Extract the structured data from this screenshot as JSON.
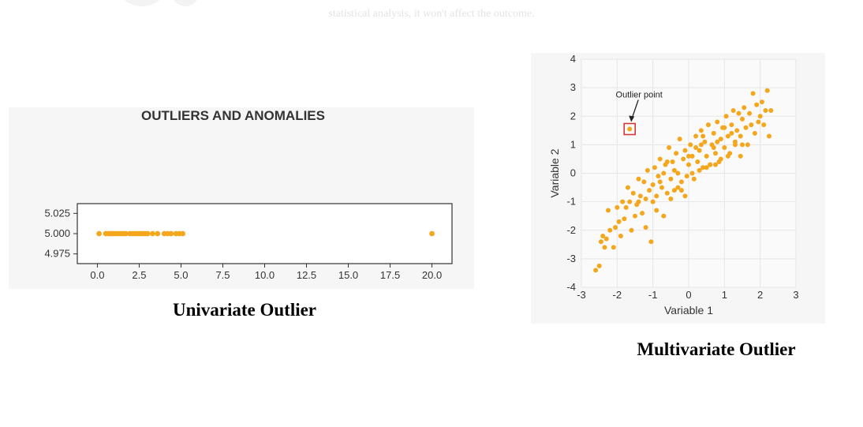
{
  "page": {
    "faded_text": "statistical analysis, it won't affect the outcome."
  },
  "captions": {
    "left": "Univariate Outlier",
    "right": "Multivariate Outlier"
  },
  "chart_data": [
    {
      "type": "scatter",
      "title": "OUTLIERS AND ANOMALIES",
      "xlabel": "",
      "ylabel": "",
      "xlim": [
        -1.2,
        21.2
      ],
      "ylim": [
        4.963,
        5.037
      ],
      "xticks": [
        0.0,
        2.5,
        5.0,
        7.5,
        10.0,
        12.5,
        15.0,
        17.5,
        20.0
      ],
      "yticks": [
        4.975,
        5.0,
        5.025
      ],
      "tick_format": {
        "x": 1,
        "y": 3
      },
      "grid": false,
      "marker_color": "#f4a71d",
      "x": [
        0.1,
        0.5,
        0.65,
        0.8,
        0.95,
        1.1,
        1.25,
        1.4,
        1.55,
        1.7,
        1.95,
        2.1,
        2.25,
        2.4,
        2.55,
        2.7,
        2.85,
        3.0,
        3.3,
        3.6,
        4.0,
        4.2,
        4.4,
        4.7,
        4.9,
        5.1,
        20.0
      ],
      "y": [
        5.0,
        5.0,
        5.0,
        5.0,
        5.0,
        5.0,
        5.0,
        5.0,
        5.0,
        5.0,
        5.0,
        5.0,
        5.0,
        5.0,
        5.0,
        5.0,
        5.0,
        5.0,
        5.0,
        5.0,
        5.0,
        5.0,
        5.0,
        5.0,
        5.0,
        5.0,
        5.0
      ]
    },
    {
      "type": "scatter",
      "title": "",
      "xlabel": "Variable 1",
      "ylabel": "Variable 2",
      "xlim": [
        -3,
        3
      ],
      "ylim": [
        -4,
        4
      ],
      "xticks": [
        -3,
        -2,
        -1,
        0,
        1,
        2,
        3
      ],
      "yticks": [
        -4,
        -3,
        -2,
        -1,
        0,
        1,
        2,
        3,
        4
      ],
      "tick_format": {
        "x": 0,
        "y": 0
      },
      "grid": true,
      "marker_color": "#f4a71d",
      "annotation": {
        "text": "Outlier point",
        "x": -1.65,
        "y": 1.55,
        "box_color": "#d03a3a"
      },
      "x": [
        -2.6,
        -2.5,
        -2.45,
        -2.4,
        -2.35,
        -2.3,
        -2.25,
        -2.2,
        -2.1,
        -2.05,
        -2.0,
        -1.95,
        -1.9,
        -1.85,
        -1.8,
        -1.75,
        -1.7,
        -1.65,
        -1.6,
        -1.55,
        -1.5,
        -1.45,
        -1.4,
        -1.35,
        -1.3,
        -1.25,
        -1.2,
        -1.15,
        -1.1,
        -1.05,
        -1.0,
        -0.95,
        -0.9,
        -0.85,
        -0.8,
        -0.75,
        -0.7,
        -0.65,
        -0.6,
        -0.55,
        -0.5,
        -0.45,
        -0.4,
        -0.35,
        -0.3,
        -0.25,
        -0.2,
        -0.15,
        -0.1,
        -0.05,
        0.0,
        0.05,
        0.1,
        0.15,
        0.2,
        0.25,
        0.3,
        0.35,
        0.4,
        0.45,
        0.5,
        0.55,
        0.6,
        0.65,
        0.7,
        0.75,
        0.8,
        0.85,
        0.9,
        0.95,
        1.0,
        1.05,
        1.1,
        1.15,
        1.2,
        1.25,
        1.3,
        1.35,
        1.4,
        1.45,
        1.5,
        1.55,
        1.6,
        1.65,
        1.7,
        1.75,
        1.8,
        1.85,
        1.9,
        1.95,
        2.0,
        2.05,
        2.1,
        2.15,
        2.2,
        2.25,
        2.3,
        -1.2,
        -0.9,
        -0.7,
        -0.5,
        -0.3,
        -0.1,
        0.1,
        0.3,
        0.5,
        0.7,
        0.9,
        1.1,
        1.3,
        1.5,
        -0.8,
        -0.4,
        0.0,
        0.4,
        0.8,
        1.2,
        -1.4,
        -0.6,
        0.2,
        0.6,
        1.0,
        -1.0,
        -0.2,
        0.35,
        0.75,
        1.45,
        -1.65
      ],
      "y": [
        -3.4,
        -3.25,
        -2.4,
        -2.2,
        -2.6,
        -2.3,
        -1.3,
        -2.0,
        -2.6,
        -1.9,
        -1.2,
        -1.7,
        -2.2,
        -1.0,
        -1.6,
        -1.2,
        -0.5,
        -1.0,
        -2.0,
        -0.7,
        -1.5,
        -1.1,
        -0.2,
        -0.8,
        -1.4,
        -0.3,
        -0.9,
        0.1,
        -0.6,
        -2.4,
        -0.4,
        0.2,
        -0.8,
        -0.1,
        0.5,
        -0.5,
        0.0,
        0.3,
        -0.7,
        0.9,
        -0.2,
        0.4,
        -0.6,
        0.7,
        0.0,
        1.2,
        -0.3,
        0.5,
        0.8,
        -0.1,
        0.3,
        1.0,
        0.6,
        -0.2,
        1.3,
        0.4,
        0.8,
        1.5,
        0.2,
        1.1,
        0.6,
        1.7,
        0.3,
        1.0,
        1.4,
        0.7,
        1.8,
        0.4,
        1.2,
        1.6,
        0.9,
        2.0,
        1.3,
        0.7,
        1.7,
        2.2,
        1.1,
        1.5,
        2.1,
        1.3,
        1.9,
        2.3,
        1.6,
        1.0,
        2.1,
        1.7,
        2.8,
        1.4,
        2.4,
        1.8,
        2.0,
        2.5,
        1.7,
        2.2,
        2.9,
        1.3,
        2.2,
        -1.9,
        -1.3,
        -1.5,
        -0.9,
        -0.5,
        -0.8,
        0.0,
        0.1,
        0.2,
        0.9,
        0.5,
        0.6,
        1.0,
        1.0,
        -0.3,
        0.1,
        0.6,
        1.3,
        1.1,
        1.4,
        -1.0,
        0.4,
        0.9,
        0.3,
        1.6,
        -1.0,
        -0.6,
        1.0,
        0.3,
        0.6,
        1.55
      ]
    }
  ]
}
